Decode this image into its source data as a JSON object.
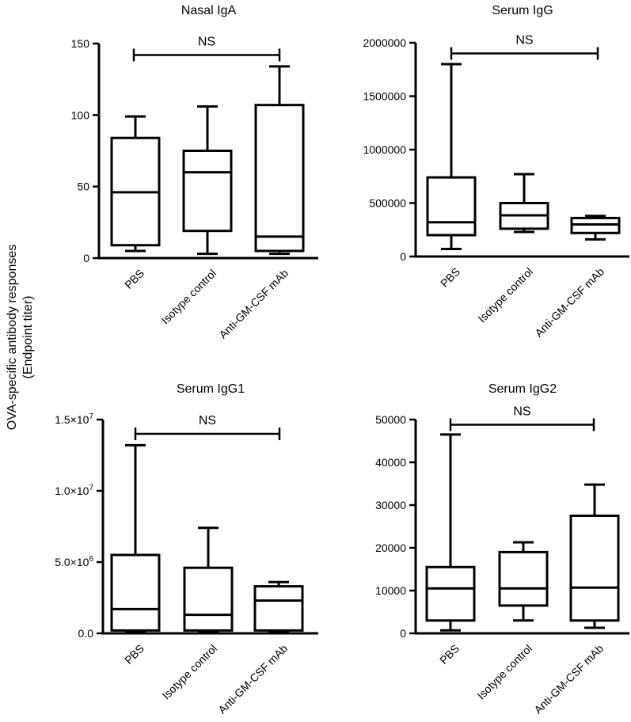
{
  "figure": {
    "ylabel_line1": "OVA-specific antibody responses",
    "ylabel_line2": "(Endpoint titer)"
  },
  "chart_data": [
    {
      "type": "box",
      "title": "Nasal IgA",
      "categories": [
        "PBS",
        "Isotype control",
        "Anti-GM-CSF mAb"
      ],
      "ylim": [
        0,
        150
      ],
      "yticks": [
        0,
        50,
        100,
        150
      ],
      "ytick_labels": [
        "0",
        "50",
        "100",
        "150"
      ],
      "boxes": [
        {
          "min": 5,
          "q1": 9,
          "median": 46,
          "q3": 84,
          "max": 99
        },
        {
          "min": 3,
          "q1": 19,
          "median": 60,
          "q3": 75,
          "max": 106
        },
        {
          "min": 3,
          "q1": 5,
          "median": 15,
          "q3": 107,
          "max": 134
        }
      ],
      "significance": {
        "label": "NS",
        "y": 142
      }
    },
    {
      "type": "box",
      "title": "Serum IgG",
      "categories": [
        "PBS",
        "Isotype control",
        "Anti-GM-CSF mAb"
      ],
      "ylim": [
        0,
        2000000
      ],
      "yticks": [
        0,
        500000,
        1000000,
        1500000,
        2000000
      ],
      "ytick_labels": [
        "0",
        "500000",
        "1000000",
        "1500000",
        "2000000"
      ],
      "boxes": [
        {
          "min": 70000,
          "q1": 200000,
          "median": 320000,
          "q3": 740000,
          "max": 1800000
        },
        {
          "min": 230000,
          "q1": 260000,
          "median": 385000,
          "q3": 500000,
          "max": 770000
        },
        {
          "min": 160000,
          "q1": 220000,
          "median": 300000,
          "q3": 360000,
          "max": 380000
        }
      ],
      "significance": {
        "label": "NS",
        "y": 1900000
      }
    },
    {
      "type": "box",
      "title": "Serum IgG1",
      "categories": [
        "PBS",
        "Isotype control",
        "Anti-GM-CSF mAb"
      ],
      "ylim": [
        0,
        15000000
      ],
      "yticks": [
        0,
        5000000,
        10000000,
        15000000
      ],
      "ytick_labels": [
        {
          "base": "0.0",
          "exp": ""
        },
        {
          "base": "5.0×10",
          "exp": "6"
        },
        {
          "base": "1.0×10",
          "exp": "7"
        },
        {
          "base": "1.5×10",
          "exp": "7"
        }
      ],
      "boxes": [
        {
          "min": 150000,
          "q1": 200000,
          "median": 1700000,
          "q3": 5500000,
          "max": 13200000
        },
        {
          "min": 150000,
          "q1": 200000,
          "median": 1300000,
          "q3": 4600000,
          "max": 7400000
        },
        {
          "min": 150000,
          "q1": 200000,
          "median": 2300000,
          "q3": 3300000,
          "max": 3600000
        }
      ],
      "significance": {
        "label": "NS",
        "y": 14000000
      }
    },
    {
      "type": "box",
      "title": "Serum IgG2",
      "categories": [
        "PBS",
        "Isotype control",
        "Anti-GM-CSF mAb"
      ],
      "ylim": [
        0,
        50000
      ],
      "yticks": [
        0,
        10000,
        20000,
        30000,
        40000,
        50000
      ],
      "ytick_labels": [
        "0",
        "10000",
        "20000",
        "30000",
        "40000",
        "50000"
      ],
      "boxes": [
        {
          "min": 700,
          "q1": 3000,
          "median": 10500,
          "q3": 15500,
          "max": 46500
        },
        {
          "min": 3000,
          "q1": 6500,
          "median": 10500,
          "q3": 19000,
          "max": 21300
        },
        {
          "min": 1300,
          "q1": 3000,
          "median": 10700,
          "q3": 27500,
          "max": 34800
        }
      ],
      "significance": {
        "label": "NS",
        "y": 48800
      }
    }
  ]
}
